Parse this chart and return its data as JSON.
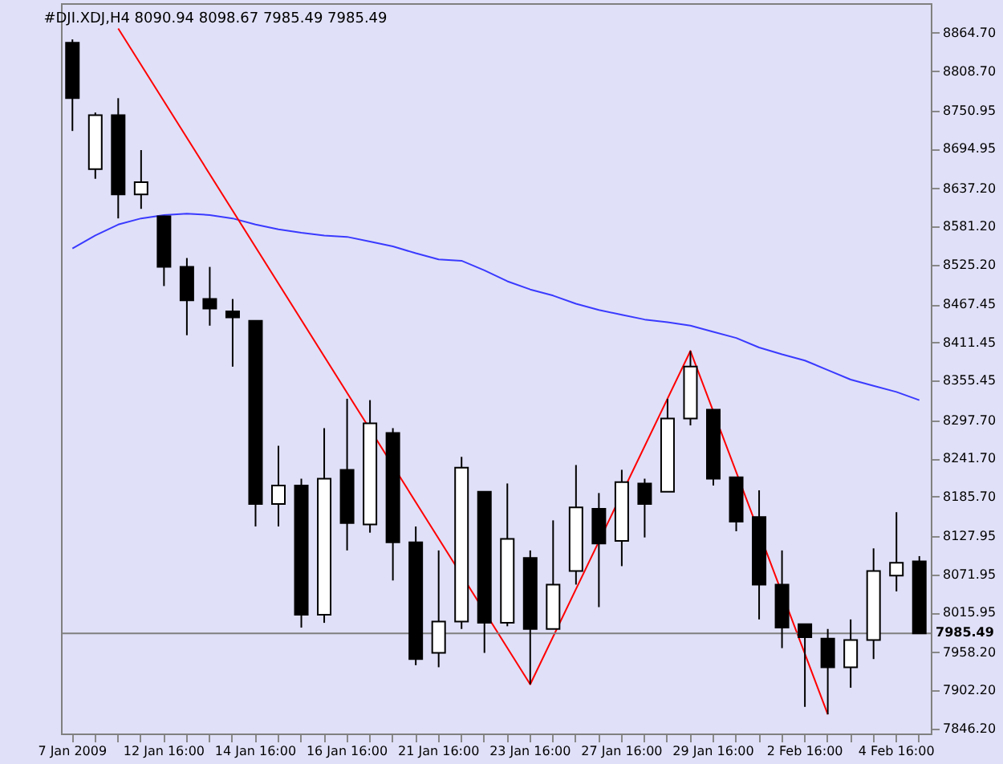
{
  "chart_data": {
    "type": "candlestick",
    "title": "#DJI.XDJ,H4  8090.94 8098.67 7985.49 7985.49",
    "categories": [
      "7 Jan 2009",
      null,
      null,
      null,
      "12 Jan 16:00",
      null,
      null,
      null,
      "14 Jan 16:00",
      null,
      null,
      null,
      "16 Jan 16:00",
      null,
      null,
      null,
      "21 Jan 16:00",
      null,
      null,
      null,
      "23 Jan 16:00",
      null,
      null,
      null,
      "27 Jan 16:00",
      null,
      null,
      null,
      "29 Jan 16:00",
      null,
      null,
      null,
      "2 Feb 16:00",
      null,
      null,
      null,
      "4 Feb 16:00",
      null
    ],
    "ohlc": [
      [
        8850,
        8855,
        8721,
        8769
      ],
      [
        8665,
        8748,
        8651,
        8744
      ],
      [
        8744,
        8769,
        8593,
        8628
      ],
      [
        8628,
        8693,
        8607,
        8646
      ],
      [
        8596,
        8596,
        8494,
        8522
      ],
      [
        8522,
        8535,
        8422,
        8473
      ],
      [
        8475,
        8522,
        8436,
        8461
      ],
      [
        8457,
        8475,
        8376,
        8448
      ],
      [
        8443,
        8443,
        8142,
        8175
      ],
      [
        8175,
        8260,
        8142,
        8202
      ],
      [
        8202,
        8212,
        7994,
        8013
      ],
      [
        8013,
        8286,
        8001,
        8212
      ],
      [
        8225,
        8329,
        8107,
        8147
      ],
      [
        8145,
        8327,
        8133,
        8293
      ],
      [
        8279,
        8286,
        8063,
        8119
      ],
      [
        8119,
        8142,
        7939,
        7948
      ],
      [
        7957,
        8107,
        7936,
        8003
      ],
      [
        8003,
        8244,
        7992,
        8228
      ],
      [
        8193,
        8193,
        7957,
        8001
      ],
      [
        8001,
        8205,
        7996,
        8124
      ],
      [
        8096,
        8107,
        7911,
        7992
      ],
      [
        7992,
        8151,
        7992,
        8057
      ],
      [
        8077,
        8232,
        8057,
        8170
      ],
      [
        8168,
        8191,
        8024,
        8117
      ],
      [
        8121,
        8225,
        8084,
        8207
      ],
      [
        8205,
        8212,
        8126,
        8175
      ],
      [
        8193,
        8329,
        8193,
        8300
      ],
      [
        8300,
        8399,
        8290,
        8376
      ],
      [
        8313,
        8313,
        8202,
        8212
      ],
      [
        8214,
        8214,
        8135,
        8149
      ],
      [
        8156,
        8195,
        8006,
        8057
      ],
      [
        8057,
        8107,
        7964,
        7994
      ],
      [
        7999,
        7999,
        7878,
        7980
      ],
      [
        7978,
        7992,
        7867,
        7936
      ],
      [
        7936,
        8006,
        7906,
        7976
      ],
      [
        7976,
        8110,
        7948,
        8077
      ],
      [
        8070,
        8163,
        8047,
        8089
      ],
      [
        8090.94,
        8098.67,
        7985.49,
        7985.49
      ]
    ],
    "series": [
      {
        "type": "line",
        "color": "#3a3aff",
        "values": [
          8549,
          8568,
          8584,
          8593,
          8598,
          8600,
          8598,
          8593,
          8584,
          8577,
          8572,
          8568,
          8566,
          8559,
          8552,
          8542,
          8533,
          8531,
          8517,
          8501,
          8489,
          8480,
          8468,
          8459,
          8452,
          8445,
          8441,
          8436,
          8427,
          8418,
          8404,
          8394,
          8385,
          8371,
          8357,
          8348,
          8339,
          8327
        ]
      },
      {
        "type": "line",
        "color": "#ff0000",
        "values": [
          null,
          null,
          8871,
          null,
          null,
          null,
          null,
          null,
          null,
          null,
          null,
          null,
          null,
          null,
          null,
          null,
          null,
          null,
          null,
          null,
          7911,
          null,
          null,
          null,
          null,
          null,
          null,
          8399,
          null,
          null,
          null,
          null,
          null,
          7867,
          null,
          null,
          null,
          null
        ]
      }
    ],
    "ylim": [
      7839,
      8908
    ],
    "yticks": [
      {
        "value": 8864.7,
        "label": "8864.70"
      },
      {
        "value": 8808.7,
        "label": "8808.70"
      },
      {
        "value": 8750.95,
        "label": "8750.95"
      },
      {
        "value": 8694.95,
        "label": "8694.95"
      },
      {
        "value": 8637.2,
        "label": "8637.20"
      },
      {
        "value": 8581.2,
        "label": "8581.20"
      },
      {
        "value": 8525.2,
        "label": "8525.20"
      },
      {
        "value": 8467.45,
        "label": "8467.45"
      },
      {
        "value": 8411.45,
        "label": "8411.45"
      },
      {
        "value": 8355.45,
        "label": "8355.45"
      },
      {
        "value": 8297.7,
        "label": "8297.70"
      },
      {
        "value": 8241.7,
        "label": "8241.70"
      },
      {
        "value": 8185.7,
        "label": "8185.70"
      },
      {
        "value": 8127.95,
        "label": "8127.95"
      },
      {
        "value": 8071.95,
        "label": "8071.95"
      },
      {
        "value": 8015.95,
        "label": "8015.95"
      },
      {
        "value": 7958.2,
        "label": "7958.20"
      },
      {
        "value": 7902.2,
        "label": "7902.20"
      },
      {
        "value": 7846.2,
        "label": "7846.20"
      }
    ],
    "ref_lines": [
      {
        "axis": "y",
        "value": 7985.49,
        "label": "7985.49",
        "color": "#808080"
      }
    ],
    "grid": false
  }
}
